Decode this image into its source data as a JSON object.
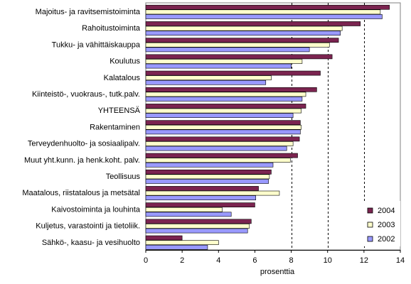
{
  "chart_data": {
    "type": "bar",
    "orientation": "horizontal",
    "categories": [
      "Majoitus- ja ravitsemistoiminta",
      "Rahoitustoiminta",
      "Tukku- ja vähittäiskauppa",
      "Koulutus",
      "Kalatalous",
      "Kiinteistö-, vuokraus-, tutk.palv.",
      "YHTEENSÄ",
      "Rakentaminen",
      "Terveydenhuolto- ja sosiaalipalv.",
      "Muut yht.kunn. ja henk.koht. palv.",
      "Teollisuus",
      "Maatalous, riistatalous ja metsätal",
      "Kaivostoiminta ja louhinta",
      "Kuljetus, varastointi ja tietoliik.",
      "Sähkö-, kaasu- ja vesihuolto"
    ],
    "series": [
      {
        "name": "2004",
        "color": "#7b2450",
        "values": [
          13.4,
          11.8,
          10.6,
          10.25,
          9.6,
          9.4,
          8.8,
          8.5,
          8.45,
          8.35,
          6.9,
          6.2,
          6.0,
          5.8,
          2.0
        ]
      },
      {
        "name": "2003",
        "color": "#ffffcc",
        "values": [
          12.9,
          10.8,
          10.1,
          8.6,
          6.9,
          8.8,
          8.55,
          8.55,
          8.1,
          7.95,
          6.8,
          7.35,
          4.2,
          5.7,
          4.0
        ]
      },
      {
        "name": "2002",
        "color": "#9999ff",
        "values": [
          13.0,
          10.7,
          9.0,
          8.0,
          6.6,
          8.6,
          8.1,
          8.5,
          7.75,
          7.0,
          6.75,
          6.05,
          4.7,
          5.6,
          3.4
        ]
      }
    ],
    "xlabel": "prosenttia",
    "xlim": [
      0,
      14
    ],
    "xticks": [
      "0",
      "2",
      "4",
      "6",
      "8",
      "10",
      "12",
      "14"
    ],
    "gridlines": [
      8,
      10,
      12
    ],
    "legend_position": "bottom-right",
    "plot_border": "#808080"
  }
}
